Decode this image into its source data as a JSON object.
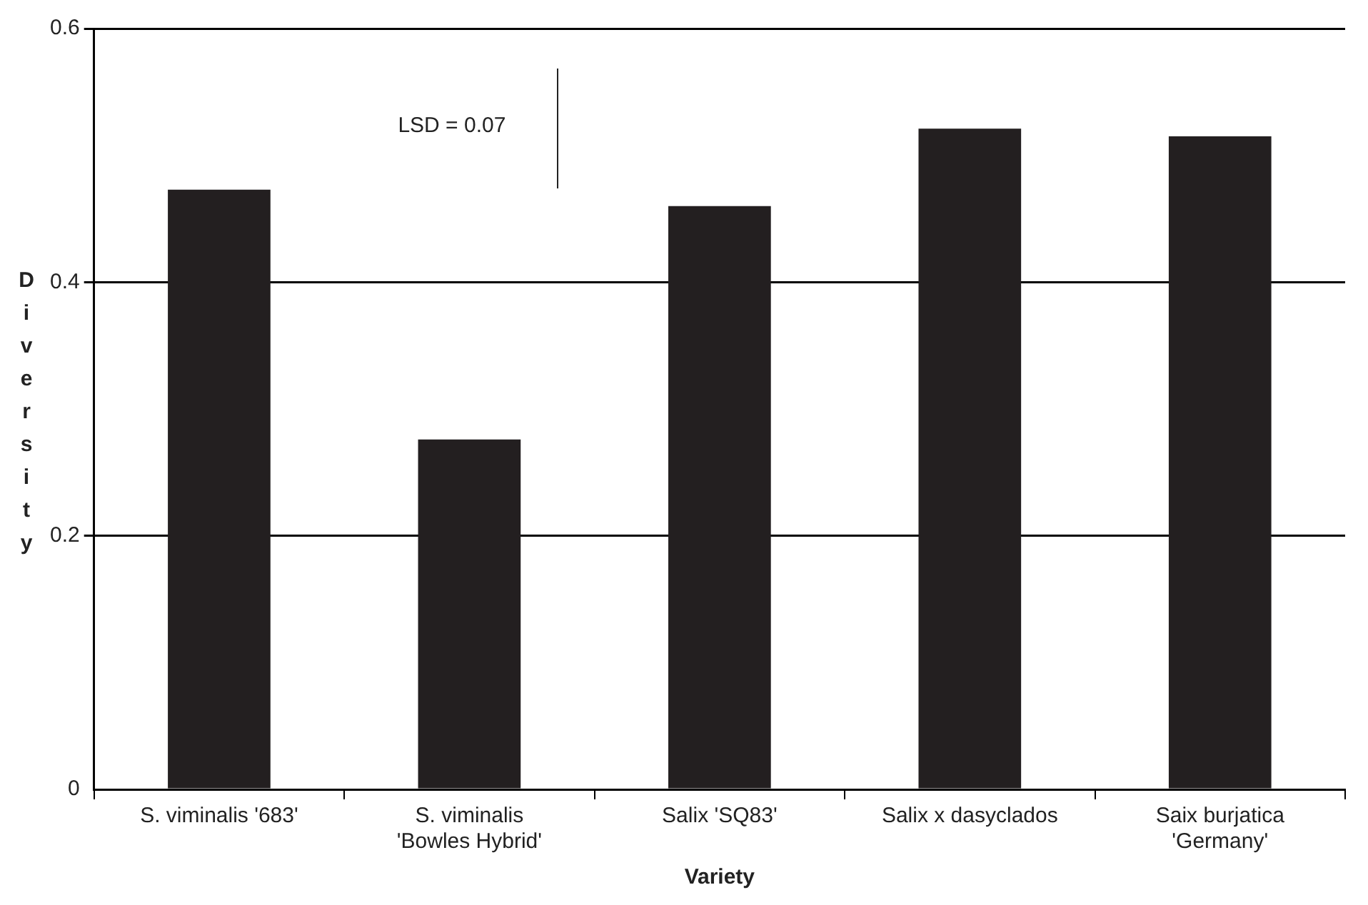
{
  "chart_data": {
    "type": "bar",
    "xlabel": "Variety",
    "ylabel": "Diversity",
    "categories": [
      "S. viminalis '683'",
      "S. viminalis 'Bowles Hybrid'",
      "Salix 'SQ83'",
      "Salix x dasyclados",
      "Saix burjatica 'Germany'"
    ],
    "values": [
      0.473,
      0.276,
      0.46,
      0.521,
      0.515
    ],
    "color": "#231f20",
    "ylim": [
      0,
      0.6
    ],
    "yticks": [
      0,
      0.2,
      0.4,
      0.6
    ],
    "grid": "y",
    "annotations": [
      "LSD = 0.07"
    ]
  }
}
